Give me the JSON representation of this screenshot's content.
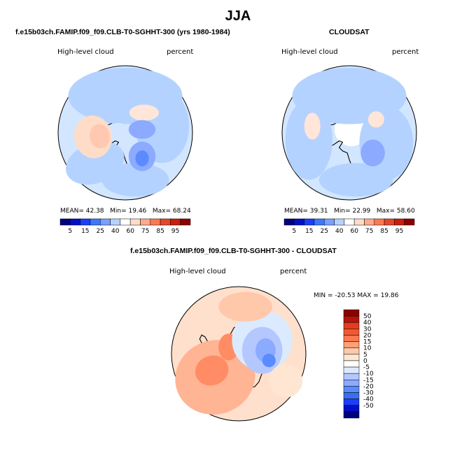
{
  "main_title": "JJA",
  "palette": {
    "abs": [
      "#000080",
      "#0010c8",
      "#1e3cff",
      "#3c78ff",
      "#78a0ff",
      "#b4d2ff",
      "#ffffff",
      "#ffdcc8",
      "#ffaa8c",
      "#ff7850",
      "#e64628",
      "#c81e0f",
      "#8c0000"
    ],
    "diff": [
      "#000080",
      "#0010c8",
      "#1e3cff",
      "#3c6ef0",
      "#5a8cff",
      "#8caaff",
      "#b4c8ff",
      "#dceaff",
      "#ffffff",
      "#ffe6d2",
      "#ffc8aa",
      "#ffa078",
      "#ff7850",
      "#f05a32",
      "#e63c1e",
      "#b4140a",
      "#8c0000"
    ]
  },
  "chart_data": [
    {
      "type": "heatmap",
      "projection": "south-polar-stereographic",
      "title": "f.e15b03ch.FAMIP.f09_f09.CLB-T0-SGHHT-300 (yrs 1980-1984)",
      "left_label": "High-level cloud",
      "right_label": "percent",
      "stats": {
        "mean_label": "MEAN=",
        "mean": "42.38",
        "min_label": "Min=",
        "min": "19.46",
        "max_label": "Max=",
        "max": "68.24"
      },
      "levels": [
        5,
        10,
        15,
        20,
        25,
        30,
        40,
        50,
        60,
        70,
        75,
        80,
        85,
        90,
        95
      ],
      "level_labels": [
        "5",
        "15",
        "25",
        "40",
        "60",
        "75",
        "85",
        "95"
      ],
      "colorbar_orientation": "horizontal",
      "data_gap_at_pole": false
    },
    {
      "type": "heatmap",
      "projection": "south-polar-stereographic",
      "title": "CLOUDSAT",
      "left_label": "High-level cloud",
      "right_label": "percent",
      "stats": {
        "mean_label": "MEAN=",
        "mean": "39.31",
        "min_label": "Min=",
        "min": "22.99",
        "max_label": "Max=",
        "max": "58.60"
      },
      "levels": [
        5,
        10,
        15,
        20,
        25,
        30,
        40,
        50,
        60,
        70,
        75,
        80,
        85,
        90,
        95
      ],
      "level_labels": [
        "5",
        "15",
        "25",
        "40",
        "60",
        "75",
        "85",
        "95"
      ],
      "colorbar_orientation": "horizontal",
      "data_gap_at_pole": true
    },
    {
      "type": "heatmap",
      "projection": "south-polar-stereographic",
      "title": "f.e15b03ch.FAMIP.f09_f09.CLB-T0-SGHHT-300 - CLOUDSAT",
      "left_label": "High-level cloud",
      "right_label": "percent",
      "stats": {
        "min_label": "MIN =",
        "min": "-20.53",
        "max_label": "MAX =",
        "max": "19.86"
      },
      "levels": [
        50,
        40,
        30,
        20,
        15,
        10,
        5,
        0,
        -5,
        -10,
        -15,
        -20,
        -30,
        -40,
        -50
      ],
      "level_labels": [
        "50",
        "40",
        "30",
        "20",
        "15",
        "10",
        "5",
        "0",
        "-5",
        "-10",
        "-15",
        "-20",
        "-30",
        "-40",
        "-50"
      ],
      "colorbar_orientation": "vertical",
      "data_gap_at_pole": true
    }
  ]
}
